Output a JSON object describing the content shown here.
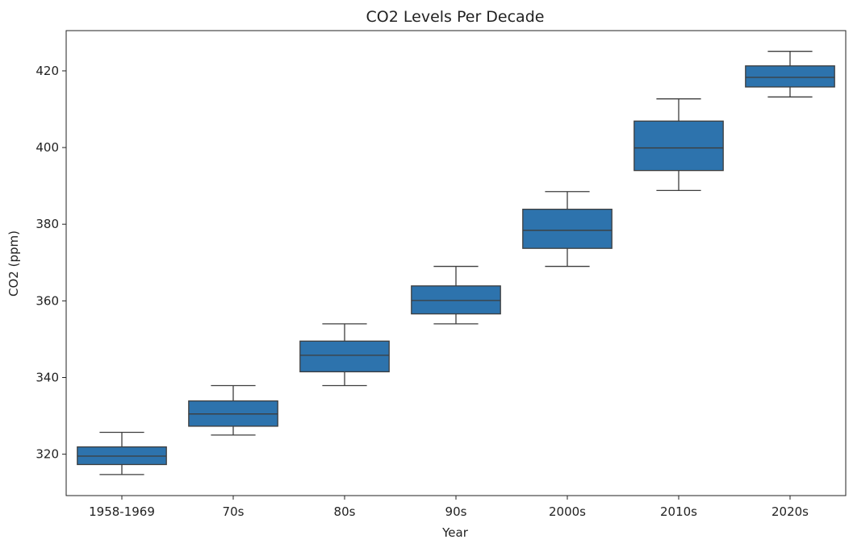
{
  "chart_data": {
    "type": "box",
    "title": "CO2 Levels Per Decade",
    "xlabel": "Year",
    "ylabel": "CO2 (ppm)",
    "ylim": [
      309.2,
      430.5
    ],
    "yticks": [
      320,
      340,
      360,
      380,
      400,
      420
    ],
    "grid": false,
    "categories": [
      "1958-1969",
      "70s",
      "80s",
      "90s",
      "2000s",
      "2010s",
      "2020s"
    ],
    "boxes": [
      {
        "category": "1958-1969",
        "whisker_low": 314.7,
        "q1": 317.3,
        "median": 319.5,
        "q3": 321.9,
        "whisker_high": 325.7
      },
      {
        "category": "70s",
        "whisker_low": 325.0,
        "q1": 327.3,
        "median": 330.5,
        "q3": 333.9,
        "whisker_high": 337.9
      },
      {
        "category": "80s",
        "whisker_low": 337.9,
        "q1": 341.5,
        "median": 345.8,
        "q3": 349.5,
        "whisker_high": 354.0
      },
      {
        "category": "90s",
        "whisker_low": 354.0,
        "q1": 356.6,
        "median": 360.1,
        "q3": 363.9,
        "whisker_high": 369.0
      },
      {
        "category": "2000s",
        "whisker_low": 369.0,
        "q1": 373.7,
        "median": 378.4,
        "q3": 383.9,
        "whisker_high": 388.5
      },
      {
        "category": "2010s",
        "whisker_low": 388.8,
        "q1": 394.0,
        "median": 399.9,
        "q3": 406.9,
        "whisker_high": 412.7
      },
      {
        "category": "2020s",
        "whisker_low": 413.2,
        "q1": 415.8,
        "median": 418.3,
        "q3": 421.3,
        "whisker_high": 425.1
      }
    ],
    "box_color": "#2d73ad",
    "line_color": "#3d3d3d"
  }
}
